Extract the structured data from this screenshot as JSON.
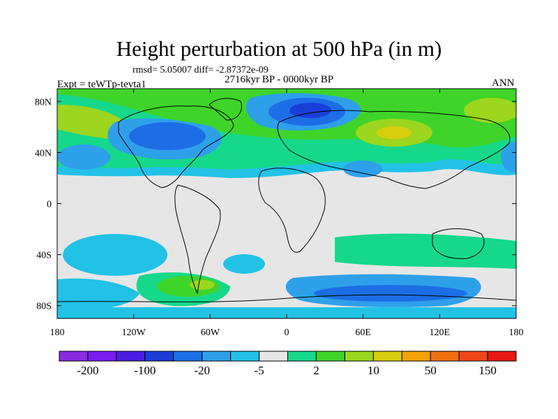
{
  "title": "Height perturbation at 500 hPa (in m)",
  "rmsd_text": "rmsd= 5.05007 diff= -2.87372e-09",
  "period_text": "2716kyr BP - 0000kyr BP",
  "experiment_text": "Expt = teWTp-tevta1",
  "season_text": "ANN",
  "map": {
    "lon_range": [
      -180,
      180
    ],
    "lat_range": [
      -90,
      90
    ],
    "lon_ticks": [
      {
        "value": -180,
        "label": "180"
      },
      {
        "value": -120,
        "label": "120W"
      },
      {
        "value": -60,
        "label": "60W"
      },
      {
        "value": 0,
        "label": "0"
      },
      {
        "value": 60,
        "label": "60E"
      },
      {
        "value": 120,
        "label": "120E"
      },
      {
        "value": 180,
        "label": "180"
      }
    ],
    "lat_ticks": [
      {
        "value": 80,
        "label": "80N"
      },
      {
        "value": 40,
        "label": "40N"
      },
      {
        "value": 0,
        "label": "0"
      },
      {
        "value": -40,
        "label": "40S"
      },
      {
        "value": -80,
        "label": "80S"
      }
    ]
  },
  "colorbar": {
    "colors": [
      "#8a2be2",
      "#7a1bef",
      "#4a1ee0",
      "#1a3ed8",
      "#1d6ee6",
      "#2ea0ea",
      "#22c2e6",
      "#e6e6e6",
      "#16d88a",
      "#3ed42a",
      "#9cd61e",
      "#d8ce0e",
      "#f2a206",
      "#f07010",
      "#ee4818",
      "#e81818"
    ],
    "labels": [
      {
        "index": 1,
        "label": "-200"
      },
      {
        "index": 3,
        "label": "-100"
      },
      {
        "index": 5,
        "label": "-20"
      },
      {
        "index": 7,
        "label": "-5"
      },
      {
        "index": 9,
        "label": "2"
      },
      {
        "index": 11,
        "label": "10"
      },
      {
        "index": 13,
        "label": "50"
      },
      {
        "index": 15,
        "label": "150"
      }
    ]
  }
}
